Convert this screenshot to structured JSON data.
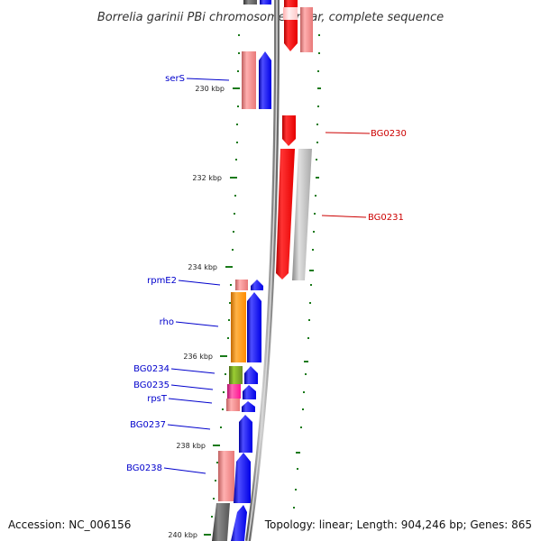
{
  "title": "Borrelia garinii PBi chromosome linear, complete sequence",
  "footer": {
    "accession": "Accession: NC_006156",
    "summary": "Topology: linear; Length: 904,246 bp; Genes: 865"
  },
  "colors": {
    "axis": "#808080",
    "tick": "#1a7a1a",
    "cds_plus": "#0000ff",
    "cds_minus": "#ff0000",
    "blue_label": "#0000cc",
    "red_label": "#cc0000",
    "rna": "#f08080",
    "pseudo": "#b4b4b4",
    "orange": "#ff8c00",
    "olive": "#6b8e23",
    "magenta": "#ff1493",
    "dark": "#555555"
  },
  "scale_labels": [
    "230 kbp",
    "232 kbp",
    "234 kbp",
    "236 kbp",
    "238 kbp",
    "240 kbp"
  ],
  "gene_labels": {
    "serS": "serS",
    "rpmE2": "rpmE2",
    "rho": "rho",
    "BG0234": "BG0234",
    "BG0235": "BG0235",
    "rpsT": "rpsT",
    "BG0237": "BG0237",
    "BG0238": "BG0238",
    "BG0230": "BG0230",
    "BG0231": "BG0231"
  }
}
